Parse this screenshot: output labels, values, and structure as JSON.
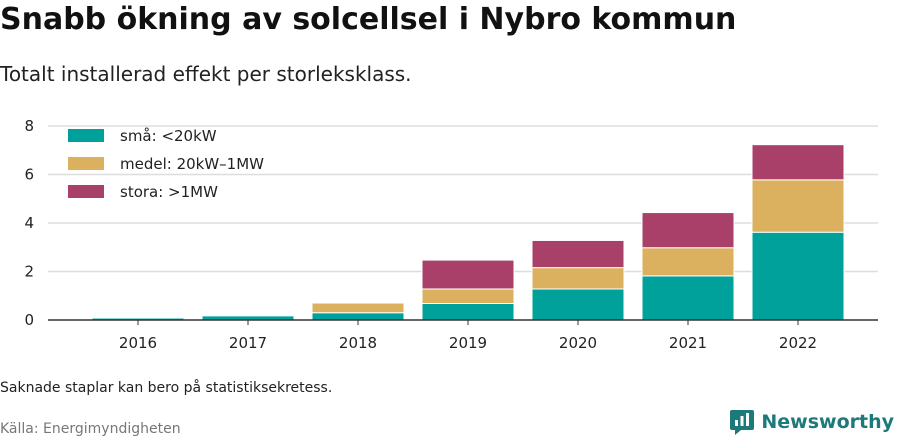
{
  "header": {
    "title": "Snabb ökning av solcellsel i Nybro kommun",
    "subtitle": "Totalt installerad effekt per storleksklass."
  },
  "footer": {
    "note": "Saknade staplar kan bero på statistiksekretess.",
    "source": "Källa: Energimyndigheten",
    "brand": "Newsworthy"
  },
  "colors": {
    "brand": "#1d7a7a",
    "grid": "#dddddd",
    "axis": "#333333"
  },
  "icons": {
    "brand": "newsworthy-logo-icon"
  },
  "chart_data": {
    "type": "bar",
    "stacked": true,
    "categories": [
      "2016",
      "2017",
      "2018",
      "2019",
      "2020",
      "2021",
      "2022"
    ],
    "series": [
      {
        "name": "små: <20kW",
        "color": "#00a19a",
        "values": [
          0.08,
          0.17,
          0.3,
          0.68,
          1.28,
          1.82,
          3.62
        ]
      },
      {
        "name": "medel: 20kW–1MW",
        "color": "#dbb05e",
        "values": [
          0,
          0,
          0.4,
          0.6,
          0.88,
          1.16,
          2.16
        ]
      },
      {
        "name": "stora: >1MW",
        "color": "#a84069",
        "values": [
          0,
          0,
          0,
          1.19,
          1.12,
          1.45,
          1.45
        ]
      }
    ],
    "yticks": [
      0,
      2,
      4,
      6,
      8
    ],
    "ylim": [
      0,
      8
    ],
    "grid": true,
    "legend_position": "top-left"
  }
}
